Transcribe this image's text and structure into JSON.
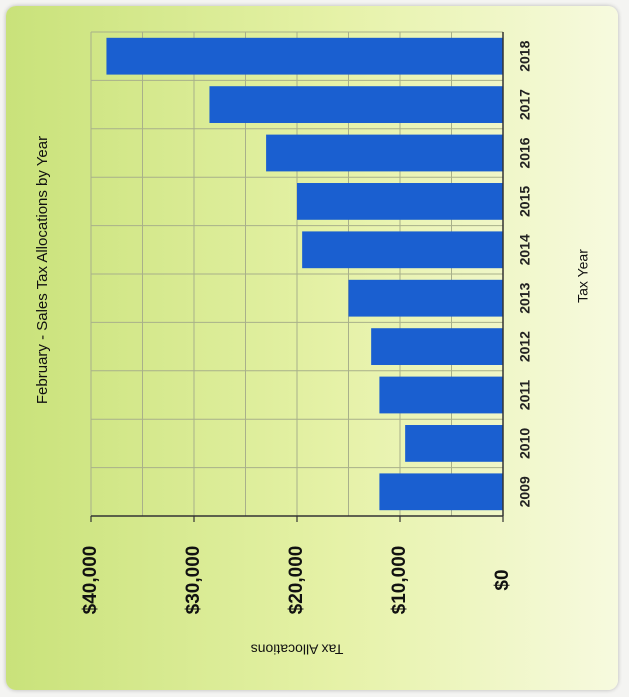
{
  "chart_data": {
    "type": "bar",
    "orientation": "horizontal",
    "rotated_display": "90deg counter-clockwise",
    "title": "February - Sales Tax Allocations by Year",
    "xlabel": "Tax Year",
    "ylabel": "Tax Allocations",
    "categories": [
      "2009",
      "2010",
      "2011",
      "2012",
      "2013",
      "2014",
      "2015",
      "2016",
      "2017",
      "2018"
    ],
    "values": [
      12000,
      9500,
      12000,
      12800,
      15000,
      19500,
      20000,
      23000,
      28500,
      38500
    ],
    "value_ticks": [
      "$0",
      "$10,000",
      "$20,000",
      "$30,000",
      "$40,000"
    ],
    "ylim": [
      0,
      40000
    ],
    "grid": true,
    "bar_color": "#1a5fd0"
  }
}
